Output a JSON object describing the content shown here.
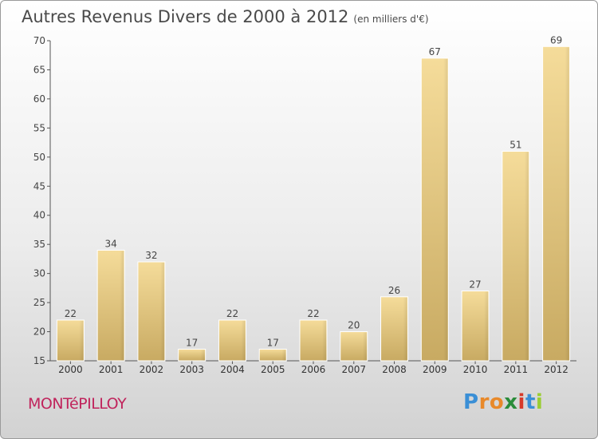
{
  "header": {
    "title": "Autres Revenus Divers de 2000 à 2012",
    "subtitle": "(en milliers d'€)"
  },
  "footer": {
    "town": "MONTéPILLOY",
    "logo_text": "Proxiti"
  },
  "chart_data": {
    "type": "bar",
    "title": "Autres Revenus Divers de 2000 à 2012",
    "subtitle": "(en milliers d'€)",
    "xlabel": "",
    "ylabel": "",
    "categories": [
      "2000",
      "2001",
      "2002",
      "2003",
      "2004",
      "2005",
      "2006",
      "2007",
      "2008",
      "2009",
      "2010",
      "2011",
      "2012"
    ],
    "values": [
      22,
      34,
      32,
      17,
      22,
      17,
      22,
      20,
      26,
      67,
      27,
      51,
      69
    ],
    "ylim": [
      15,
      70
    ],
    "yticks": [
      15,
      20,
      25,
      30,
      35,
      40,
      45,
      50,
      55,
      60,
      65,
      70
    ],
    "grid": false,
    "bar_color": "#e3c98a"
  }
}
